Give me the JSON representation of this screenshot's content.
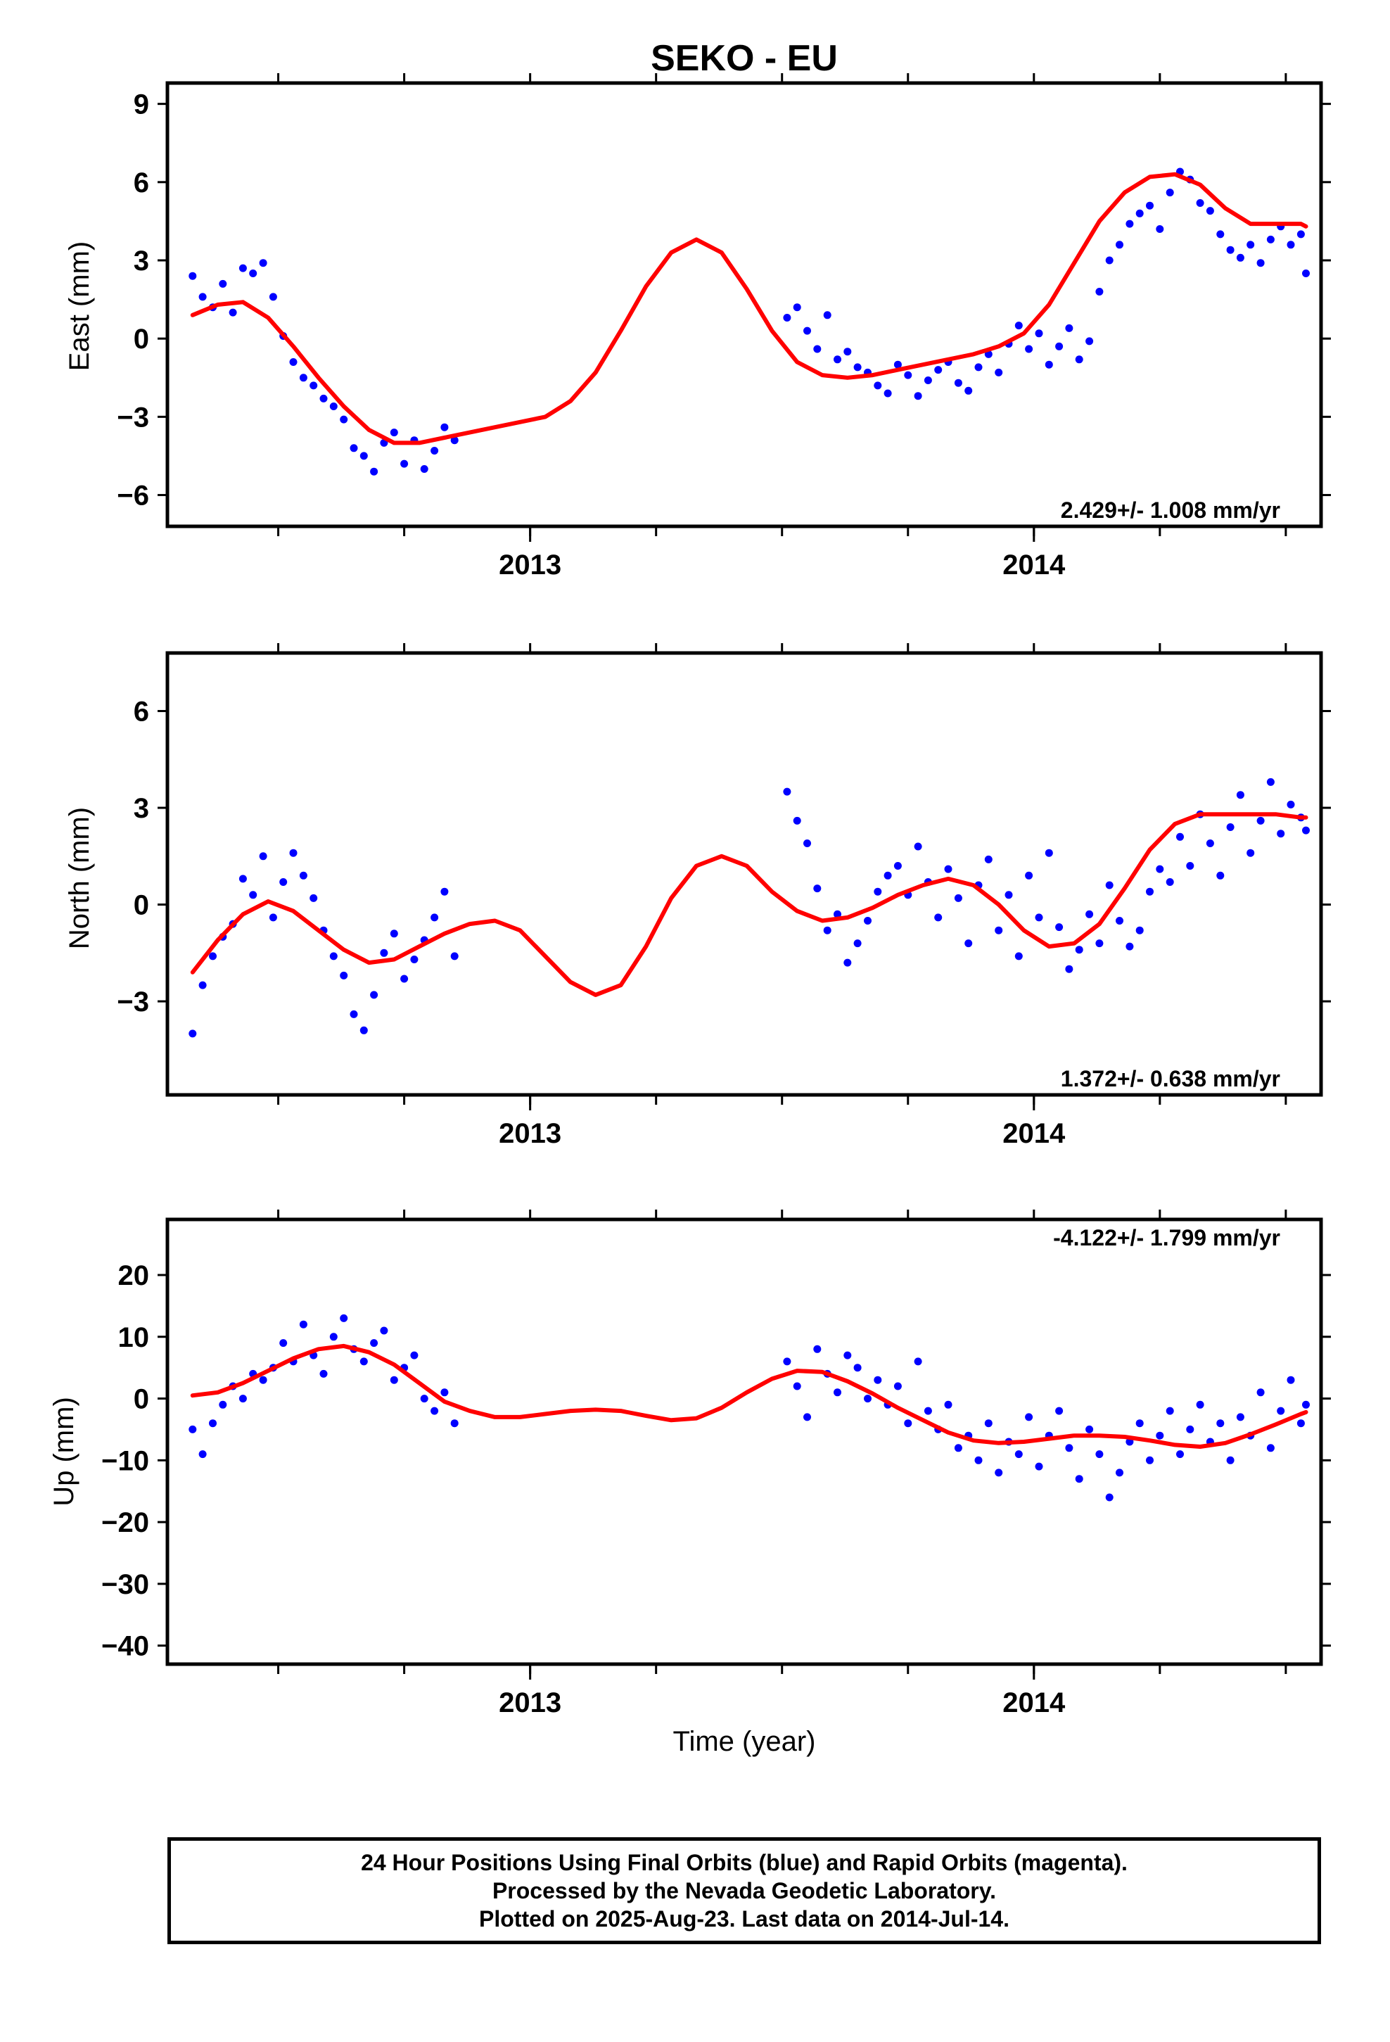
{
  "chart_data": [
    {
      "type": "scatter",
      "title": "SEKO - EU",
      "xlabel": "",
      "ylabel": "East (mm)",
      "xlim": [
        2012.28,
        2014.57
      ],
      "ylim": [
        -7.2,
        9.8
      ],
      "yticks": [
        -6,
        -3,
        0,
        3,
        6,
        9
      ],
      "xticks": [
        "2013",
        "2014"
      ],
      "rate_label": "2.429+/- 1.008 mm/yr",
      "rate_position": "bottom-right",
      "colors": {
        "points": "#0000ff",
        "model": "#ff0000"
      },
      "series": [
        {
          "name": "",
          "kind": "points",
          "x": [
            2012.33,
            2012.35,
            2012.37,
            2012.39,
            2012.41,
            2012.43,
            2012.45,
            2012.47,
            2012.49,
            2012.51,
            2012.53,
            2012.55,
            2012.57,
            2012.59,
            2012.61,
            2012.63,
            2012.65,
            2012.67,
            2012.69,
            2012.71,
            2012.73,
            2012.75,
            2012.77,
            2012.79,
            2012.81,
            2012.83,
            2012.85,
            2013.51,
            2013.53,
            2013.55,
            2013.57,
            2013.59,
            2013.61,
            2013.63,
            2013.65,
            2013.67,
            2013.69,
            2013.71,
            2013.73,
            2013.75,
            2013.77,
            2013.79,
            2013.81,
            2013.83,
            2013.85,
            2013.87,
            2013.89,
            2013.91,
            2013.93,
            2013.95,
            2013.97,
            2013.99,
            2014.01,
            2014.03,
            2014.05,
            2014.07,
            2014.09,
            2014.11,
            2014.13,
            2014.15,
            2014.17,
            2014.19,
            2014.21,
            2014.23,
            2014.25,
            2014.27,
            2014.29,
            2014.31,
            2014.33,
            2014.35,
            2014.37,
            2014.39,
            2014.41,
            2014.43,
            2014.45,
            2014.47,
            2014.49,
            2014.51,
            2014.53,
            2014.54
          ],
          "y": [
            2.4,
            1.6,
            1.2,
            2.1,
            1.0,
            2.7,
            2.5,
            2.9,
            1.6,
            0.1,
            -0.9,
            -1.5,
            -1.8,
            -2.3,
            -2.6,
            -3.1,
            -4.2,
            -4.5,
            -5.1,
            -4.0,
            -3.6,
            -4.8,
            -3.9,
            -5.0,
            -4.3,
            -3.4,
            -3.9,
            0.8,
            1.2,
            0.3,
            -0.4,
            0.9,
            -0.8,
            -0.5,
            -1.1,
            -1.3,
            -1.8,
            -2.1,
            -1.0,
            -1.4,
            -2.2,
            -1.6,
            -1.2,
            -0.9,
            -1.7,
            -2.0,
            -1.1,
            -0.6,
            -1.3,
            -0.2,
            0.5,
            -0.4,
            0.2,
            -1.0,
            -0.3,
            0.4,
            -0.8,
            -0.1,
            1.8,
            3.0,
            3.6,
            4.4,
            4.8,
            5.1,
            4.2,
            5.6,
            6.4,
            6.1,
            5.2,
            4.9,
            4.0,
            3.4,
            3.1,
            3.6,
            2.9,
            3.8,
            4.3,
            3.6,
            4.0,
            2.5
          ]
        },
        {
          "name": "",
          "kind": "line",
          "x": [
            2012.33,
            2012.38,
            2012.43,
            2012.48,
            2012.53,
            2012.58,
            2012.63,
            2012.68,
            2012.73,
            2012.78,
            2012.83,
            2012.88,
            2012.93,
            2012.98,
            2013.03,
            2013.08,
            2013.13,
            2013.18,
            2013.23,
            2013.28,
            2013.33,
            2013.38,
            2013.43,
            2013.48,
            2013.53,
            2013.58,
            2013.63,
            2013.68,
            2013.73,
            2013.78,
            2013.83,
            2013.88,
            2013.93,
            2013.98,
            2014.03,
            2014.08,
            2014.13,
            2014.18,
            2014.23,
            2014.28,
            2014.33,
            2014.38,
            2014.43,
            2014.48,
            2014.53,
            2014.54
          ],
          "y": [
            0.9,
            1.3,
            1.4,
            0.8,
            -0.3,
            -1.5,
            -2.6,
            -3.5,
            -4.0,
            -4.0,
            -3.8,
            -3.6,
            -3.4,
            -3.2,
            -3.0,
            -2.4,
            -1.3,
            0.3,
            2.0,
            3.3,
            3.8,
            3.3,
            1.9,
            0.3,
            -0.9,
            -1.4,
            -1.5,
            -1.4,
            -1.2,
            -1.0,
            -0.8,
            -0.6,
            -0.3,
            0.2,
            1.3,
            2.9,
            4.5,
            5.6,
            6.2,
            6.3,
            5.9,
            5.0,
            4.4,
            4.4,
            4.4,
            4.3
          ]
        }
      ]
    },
    {
      "type": "scatter",
      "title": "",
      "xlabel": "",
      "ylabel": "North (mm)",
      "xlim": [
        2012.28,
        2014.57
      ],
      "ylim": [
        -5.9,
        7.8
      ],
      "yticks": [
        -3,
        0,
        3,
        6
      ],
      "xticks": [
        "2013",
        "2014"
      ],
      "rate_label": "1.372+/- 0.638 mm/yr",
      "rate_position": "bottom-right",
      "colors": {
        "points": "#0000ff",
        "model": "#ff0000"
      },
      "series": [
        {
          "name": "",
          "kind": "points",
          "x": [
            2012.33,
            2012.35,
            2012.37,
            2012.39,
            2012.41,
            2012.43,
            2012.45,
            2012.47,
            2012.49,
            2012.51,
            2012.53,
            2012.55,
            2012.57,
            2012.59,
            2012.61,
            2012.63,
            2012.65,
            2012.67,
            2012.69,
            2012.71,
            2012.73,
            2012.75,
            2012.77,
            2012.79,
            2012.81,
            2012.83,
            2012.85,
            2013.51,
            2013.53,
            2013.55,
            2013.57,
            2013.59,
            2013.61,
            2013.63,
            2013.65,
            2013.67,
            2013.69,
            2013.71,
            2013.73,
            2013.75,
            2013.77,
            2013.79,
            2013.81,
            2013.83,
            2013.85,
            2013.87,
            2013.89,
            2013.91,
            2013.93,
            2013.95,
            2013.97,
            2013.99,
            2014.01,
            2014.03,
            2014.05,
            2014.07,
            2014.09,
            2014.11,
            2014.13,
            2014.15,
            2014.17,
            2014.19,
            2014.21,
            2014.23,
            2014.25,
            2014.27,
            2014.29,
            2014.31,
            2014.33,
            2014.35,
            2014.37,
            2014.39,
            2014.41,
            2014.43,
            2014.45,
            2014.47,
            2014.49,
            2014.51,
            2014.53,
            2014.54
          ],
          "y": [
            -4.0,
            -2.5,
            -1.6,
            -1.0,
            -0.6,
            0.8,
            0.3,
            1.5,
            -0.4,
            0.7,
            1.6,
            0.9,
            0.2,
            -0.8,
            -1.6,
            -2.2,
            -3.4,
            -3.9,
            -2.8,
            -1.5,
            -0.9,
            -2.3,
            -1.7,
            -1.1,
            -0.4,
            0.4,
            -1.6,
            3.5,
            2.6,
            1.9,
            0.5,
            -0.8,
            -0.3,
            -1.8,
            -1.2,
            -0.5,
            0.4,
            0.9,
            1.2,
            0.3,
            1.8,
            0.7,
            -0.4,
            1.1,
            0.2,
            -1.2,
            0.6,
            1.4,
            -0.8,
            0.3,
            -1.6,
            0.9,
            -0.4,
            1.6,
            -0.7,
            -2.0,
            -1.4,
            -0.3,
            -1.2,
            0.6,
            -0.5,
            -1.3,
            -0.8,
            0.4,
            1.1,
            0.7,
            2.1,
            1.2,
            2.8,
            1.9,
            0.9,
            2.4,
            3.4,
            1.6,
            2.6,
            3.8,
            2.2,
            3.1,
            2.7,
            2.3
          ]
        },
        {
          "name": "",
          "kind": "line",
          "x": [
            2012.33,
            2012.38,
            2012.43,
            2012.48,
            2012.53,
            2012.58,
            2012.63,
            2012.68,
            2012.73,
            2012.78,
            2012.83,
            2012.88,
            2012.93,
            2012.98,
            2013.03,
            2013.08,
            2013.13,
            2013.18,
            2013.23,
            2013.28,
            2013.33,
            2013.38,
            2013.43,
            2013.48,
            2013.53,
            2013.58,
            2013.63,
            2013.68,
            2013.73,
            2013.78,
            2013.83,
            2013.88,
            2013.93,
            2013.98,
            2014.03,
            2014.08,
            2014.13,
            2014.18,
            2014.23,
            2014.28,
            2014.33,
            2014.38,
            2014.43,
            2014.48,
            2014.53,
            2014.54
          ],
          "y": [
            -2.1,
            -1.1,
            -0.3,
            0.1,
            -0.2,
            -0.8,
            -1.4,
            -1.8,
            -1.7,
            -1.3,
            -0.9,
            -0.6,
            -0.5,
            -0.8,
            -1.6,
            -2.4,
            -2.8,
            -2.5,
            -1.3,
            0.2,
            1.2,
            1.5,
            1.2,
            0.4,
            -0.2,
            -0.5,
            -0.4,
            -0.1,
            0.3,
            0.6,
            0.8,
            0.6,
            0.0,
            -0.8,
            -1.3,
            -1.2,
            -0.6,
            0.5,
            1.7,
            2.5,
            2.8,
            2.8,
            2.8,
            2.8,
            2.7,
            2.7
          ]
        }
      ]
    },
    {
      "type": "scatter",
      "title": "",
      "xlabel": "Time (year)",
      "ylabel": "Up (mm)",
      "xlim": [
        2012.28,
        2014.57
      ],
      "ylim": [
        -43,
        29
      ],
      "yticks": [
        -40,
        -30,
        -20,
        -10,
        0,
        10,
        20
      ],
      "xticks": [
        "2013",
        "2014"
      ],
      "rate_label": "-4.122+/- 1.799 mm/yr",
      "rate_position": "top-right",
      "colors": {
        "points": "#0000ff",
        "model": "#ff0000"
      },
      "series": [
        {
          "name": "",
          "kind": "points",
          "x": [
            2012.33,
            2012.35,
            2012.37,
            2012.39,
            2012.41,
            2012.43,
            2012.45,
            2012.47,
            2012.49,
            2012.51,
            2012.53,
            2012.55,
            2012.57,
            2012.59,
            2012.61,
            2012.63,
            2012.65,
            2012.67,
            2012.69,
            2012.71,
            2012.73,
            2012.75,
            2012.77,
            2012.79,
            2012.81,
            2012.83,
            2012.85,
            2013.51,
            2013.53,
            2013.55,
            2013.57,
            2013.59,
            2013.61,
            2013.63,
            2013.65,
            2013.67,
            2013.69,
            2013.71,
            2013.73,
            2013.75,
            2013.77,
            2013.79,
            2013.81,
            2013.83,
            2013.85,
            2013.87,
            2013.89,
            2013.91,
            2013.93,
            2013.95,
            2013.97,
            2013.99,
            2014.01,
            2014.03,
            2014.05,
            2014.07,
            2014.09,
            2014.11,
            2014.13,
            2014.15,
            2014.17,
            2014.19,
            2014.21,
            2014.23,
            2014.25,
            2014.27,
            2014.29,
            2014.31,
            2014.33,
            2014.35,
            2014.37,
            2014.39,
            2014.41,
            2014.43,
            2014.45,
            2014.47,
            2014.49,
            2014.51,
            2014.53,
            2014.54
          ],
          "y": [
            -5.0,
            -9.0,
            -4.0,
            -1.0,
            2.0,
            0.0,
            4.0,
            3.0,
            5.0,
            9.0,
            6.0,
            12.0,
            7.0,
            4.0,
            10.0,
            13.0,
            8.0,
            6.0,
            9.0,
            11.0,
            3.0,
            5.0,
            7.0,
            0.0,
            -2.0,
            1.0,
            -4.0,
            6.0,
            2.0,
            -3.0,
            8.0,
            4.0,
            1.0,
            7.0,
            5.0,
            0.0,
            3.0,
            -1.0,
            2.0,
            -4.0,
            6.0,
            -2.0,
            -5.0,
            -1.0,
            -8.0,
            -6.0,
            -10.0,
            -4.0,
            -12.0,
            -7.0,
            -9.0,
            -3.0,
            -11.0,
            -6.0,
            -2.0,
            -8.0,
            -13.0,
            -5.0,
            -9.0,
            -16.0,
            -12.0,
            -7.0,
            -4.0,
            -10.0,
            -6.0,
            -2.0,
            -9.0,
            -5.0,
            -1.0,
            -7.0,
            -4.0,
            -10.0,
            -3.0,
            -6.0,
            1.0,
            -8.0,
            -2.0,
            3.0,
            -4.0,
            -1.0
          ]
        },
        {
          "name": "",
          "kind": "line",
          "x": [
            2012.33,
            2012.38,
            2012.43,
            2012.48,
            2012.53,
            2012.58,
            2012.63,
            2012.68,
            2012.73,
            2012.78,
            2012.83,
            2012.88,
            2012.93,
            2012.98,
            2013.03,
            2013.08,
            2013.13,
            2013.18,
            2013.23,
            2013.28,
            2013.33,
            2013.38,
            2013.43,
            2013.48,
            2013.53,
            2013.58,
            2013.63,
            2013.68,
            2013.73,
            2013.78,
            2013.83,
            2013.88,
            2013.93,
            2013.98,
            2014.03,
            2014.08,
            2014.13,
            2014.18,
            2014.23,
            2014.28,
            2014.33,
            2014.38,
            2014.43,
            2014.48,
            2014.53,
            2014.54
          ],
          "y": [
            0.5,
            1.0,
            2.5,
            4.5,
            6.5,
            8.0,
            8.5,
            7.5,
            5.5,
            2.5,
            -0.5,
            -2.0,
            -3.0,
            -3.0,
            -2.5,
            -2.0,
            -1.8,
            -2.0,
            -2.8,
            -3.5,
            -3.2,
            -1.5,
            1.0,
            3.2,
            4.5,
            4.3,
            2.8,
            0.8,
            -1.5,
            -3.5,
            -5.5,
            -6.8,
            -7.2,
            -7.0,
            -6.5,
            -6.0,
            -6.0,
            -6.2,
            -6.8,
            -7.5,
            -7.8,
            -7.2,
            -5.8,
            -4.2,
            -2.5,
            -2.2
          ]
        }
      ]
    }
  ],
  "caption": {
    "line1": "24 Hour Positions Using Final Orbits (blue) and Rapid Orbits (magenta).",
    "line2": "Processed by the Nevada Geodetic Laboratory.",
    "line3": "Plotted on 2025-Aug-23. Last data on 2014-Jul-14."
  }
}
